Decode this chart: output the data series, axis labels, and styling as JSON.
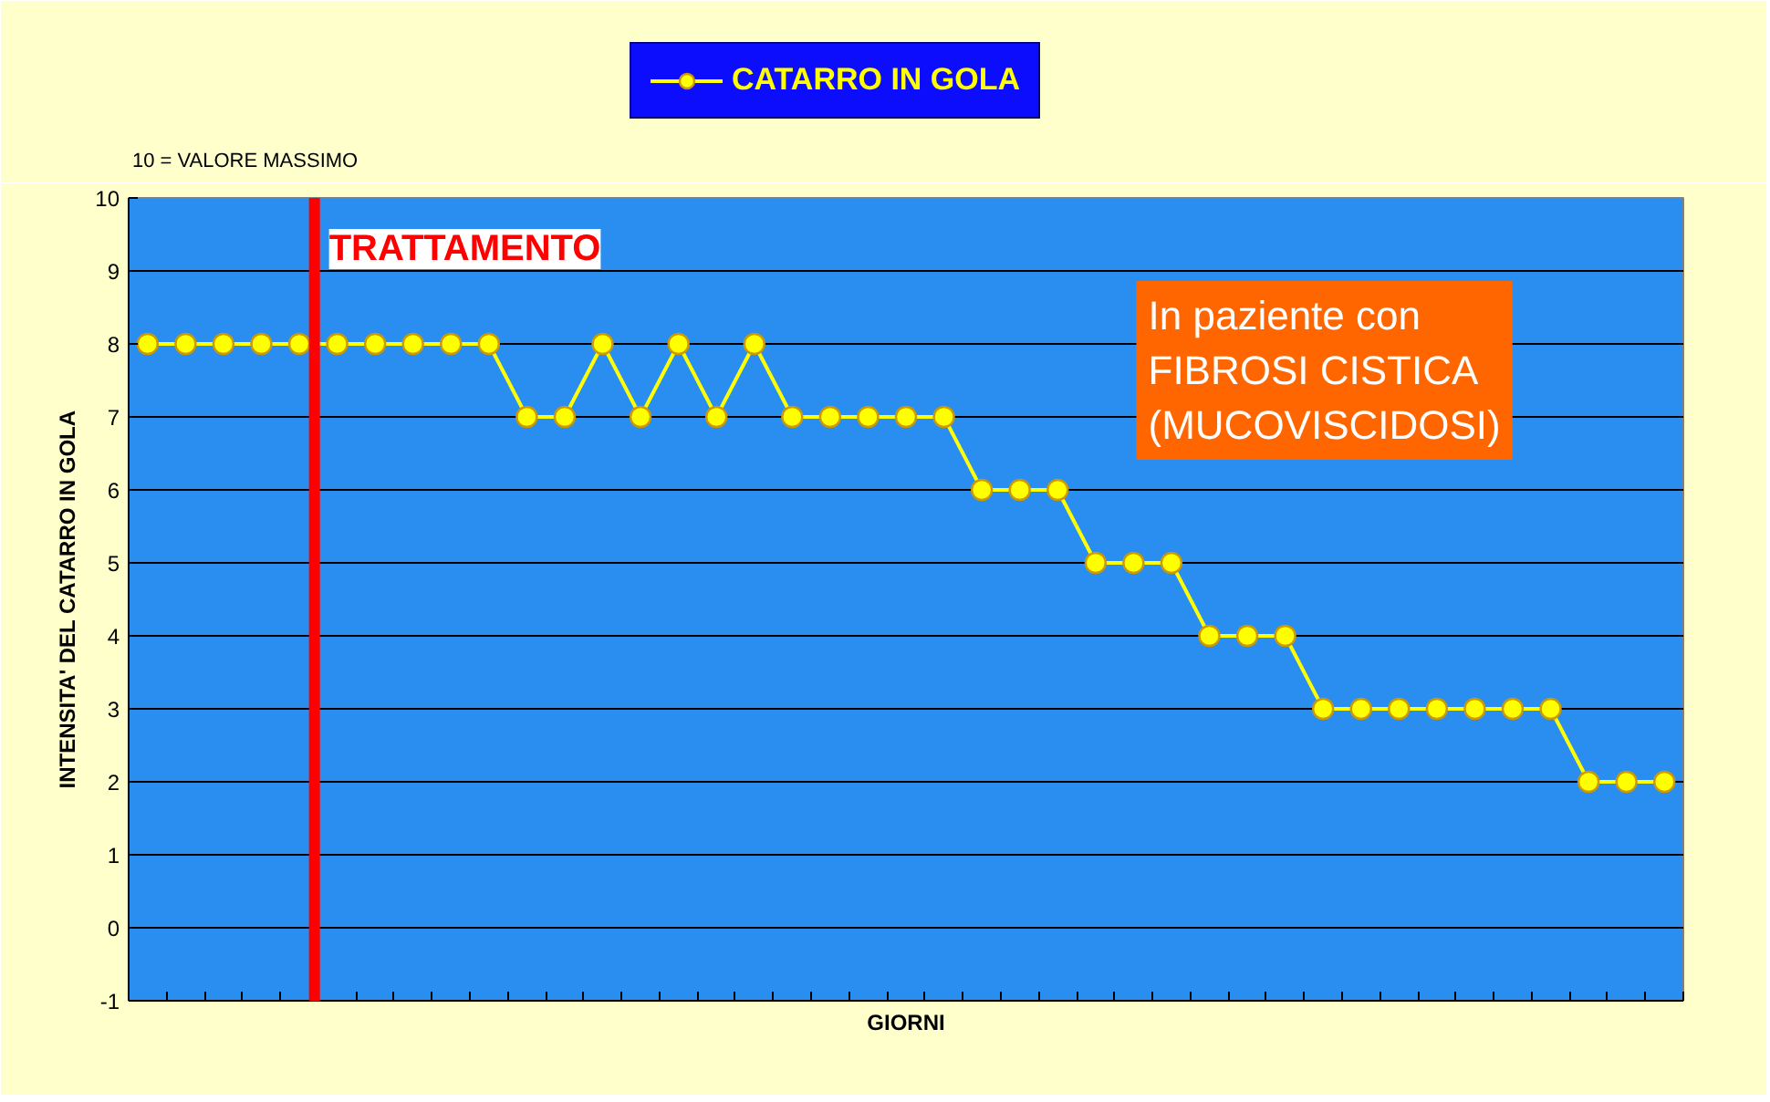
{
  "chart_data": {
    "type": "line",
    "xlabel": "GIORNI",
    "ylabel": "INTENSITA' DEL CATARRO IN GOLA",
    "categories": [
      null,
      null,
      null,
      null,
      null,
      null,
      null,
      null,
      null,
      null,
      null,
      null,
      null,
      null,
      null,
      null,
      null,
      null,
      null,
      null,
      null,
      null,
      null,
      null,
      null,
      null,
      null,
      null,
      null,
      null,
      null,
      null,
      null,
      null,
      null,
      null,
      null,
      null,
      null,
      null,
      null
    ],
    "series": [
      {
        "name": "CATARRO IN GOLA",
        "color": "#ffff00",
        "values": [
          8,
          8,
          8,
          8,
          8,
          8,
          8,
          8,
          8,
          8,
          7,
          7,
          8,
          7,
          8,
          7,
          8,
          7,
          7,
          7,
          7,
          7,
          6,
          6,
          6,
          5,
          5,
          5,
          4,
          4,
          4,
          3,
          3,
          3,
          3,
          3,
          3,
          3,
          2,
          2,
          2
        ]
      }
    ],
    "ylim": [
      -1,
      10
    ],
    "yticks": [
      -1,
      0,
      1,
      2,
      3,
      4,
      5,
      6,
      7,
      8,
      9,
      10
    ],
    "grid": "y",
    "legend": "top",
    "marker": "circle",
    "line_style": "solid",
    "annotations": [
      "10 = VALORE MASSIMO",
      "TRATTAMENTO",
      "In paziente con\nFIBROSI CISTICA\n(MUCOVISCIDOSI)"
    ]
  }
}
